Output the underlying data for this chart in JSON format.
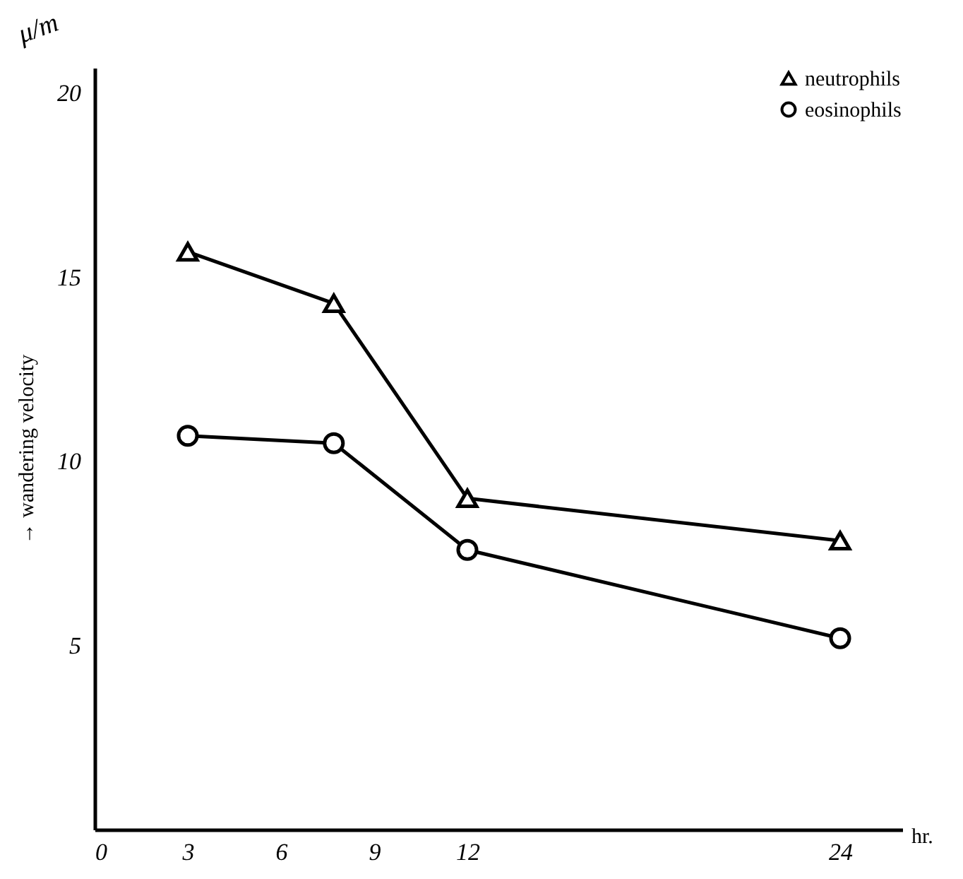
{
  "chart_data": {
    "type": "line",
    "xlabel": "hr.",
    "ylabel": "→ wandering velocity",
    "annotations": [
      "μ/m"
    ],
    "xlim": [
      0,
      26
    ],
    "xticks": [
      0,
      3,
      6,
      9,
      12,
      24
    ],
    "ylim": [
      0,
      20.7
    ],
    "yticks": [
      5,
      10,
      15,
      20
    ],
    "grid": false,
    "legend": "top right",
    "series": [
      {
        "name": "neutrophils",
        "color": "#000000",
        "marker": "triangle",
        "x": [
          3,
          7.7,
          12,
          24
        ],
        "values": [
          15.7,
          14.3,
          9.0,
          7.85
        ]
      },
      {
        "name": "eosinophils",
        "color": "#000000",
        "marker": "circle",
        "x": [
          3,
          7.7,
          12,
          24
        ],
        "values": [
          10.7,
          10.5,
          7.6,
          5.2
        ]
      }
    ]
  }
}
